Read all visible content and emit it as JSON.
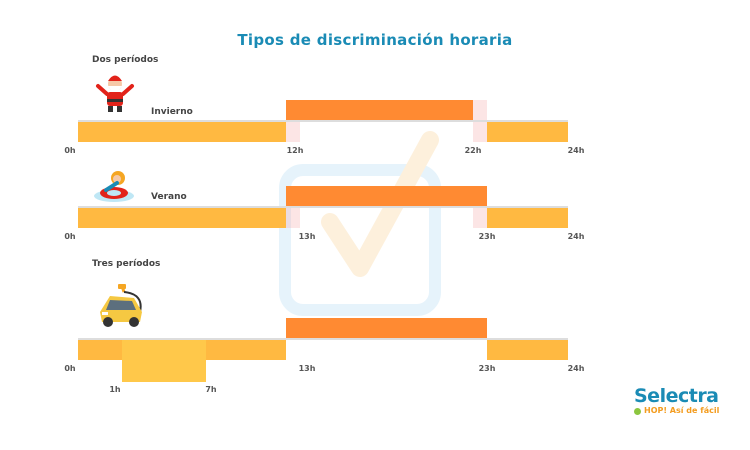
{
  "title": "Tipos de discriminación horaria",
  "sections": {
    "dos": "Dos períodos",
    "tres": "Tres períodos"
  },
  "seasons": {
    "invierno": "Invierno",
    "verano": "Verano"
  },
  "ticks": {
    "invierno": [
      "0h",
      "12h",
      "22h",
      "24h"
    ],
    "verano": [
      "0h",
      "13h",
      "23h",
      "24h"
    ],
    "tres": [
      "0h",
      "13h",
      "23h",
      "24h"
    ],
    "tres_lower": [
      "1h",
      "7h"
    ]
  },
  "icons": {
    "invierno": "santa-claus-icon",
    "verano": "swim-ring-girl-icon",
    "tres": "electric-car-icon",
    "watermark": "checkmark-box-icon"
  },
  "colors": {
    "title": "#1a8bb5",
    "valle": "#ffb941",
    "punta": "#ff8a32",
    "supervalle": "#ffc84a"
  },
  "logo": {
    "name": "Selectra",
    "tagline": "HOP! Así de fácil"
  }
}
